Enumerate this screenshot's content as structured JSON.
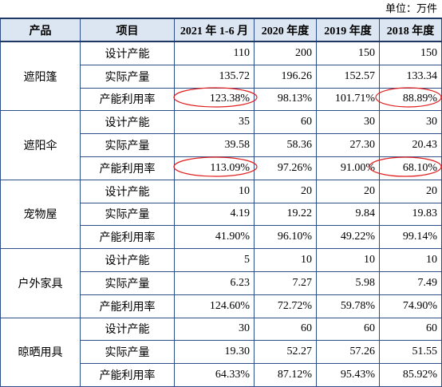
{
  "unit": "单位：万件",
  "table": {
    "header": [
      "产品",
      "项目",
      "2021 年 1-6 月",
      "2020 年度",
      "2019 年度",
      "2018 年度"
    ],
    "groups": [
      {
        "product": "遮阳篷",
        "rows": [
          [
            "设计产能",
            "110",
            "200",
            "150",
            "150"
          ],
          [
            "实际产量",
            "135.72",
            "196.26",
            "152.57",
            "133.34"
          ],
          [
            "产能利用率",
            "123.38%",
            "98.13%",
            "101.71%",
            "88.89%"
          ]
        ]
      },
      {
        "product": "遮阳伞",
        "rows": [
          [
            "设计产能",
            "35",
            "60",
            "30",
            "30"
          ],
          [
            "实际产量",
            "39.58",
            "58.36",
            "27.30",
            "20.43"
          ],
          [
            "产能利用率",
            "113.09%",
            "97.26%",
            "91.00%",
            "68.10%"
          ]
        ]
      },
      {
        "product": "宠物屋",
        "rows": [
          [
            "设计产能",
            "10",
            "20",
            "20",
            "20"
          ],
          [
            "实际产量",
            "4.19",
            "19.22",
            "9.84",
            "19.83"
          ],
          [
            "产能利用率",
            "41.90%",
            "96.10%",
            "49.22%",
            "99.14%"
          ]
        ]
      },
      {
        "product": "户外家具",
        "rows": [
          [
            "设计产能",
            "5",
            "10",
            "10",
            "10"
          ],
          [
            "实际产量",
            "6.23",
            "7.27",
            "5.98",
            "7.49"
          ],
          [
            "产能利用率",
            "124.60%",
            "72.72%",
            "59.78%",
            "74.90%"
          ]
        ]
      },
      {
        "product": "晾晒用具",
        "rows": [
          [
            "设计产能",
            "30",
            "60",
            "60",
            "60"
          ],
          [
            "实际产量",
            "19.30",
            "52.27",
            "57.26",
            "51.55"
          ],
          [
            "产能利用率",
            "64.33%",
            "87.12%",
            "95.43%",
            "85.92%"
          ]
        ]
      }
    ]
  }
}
